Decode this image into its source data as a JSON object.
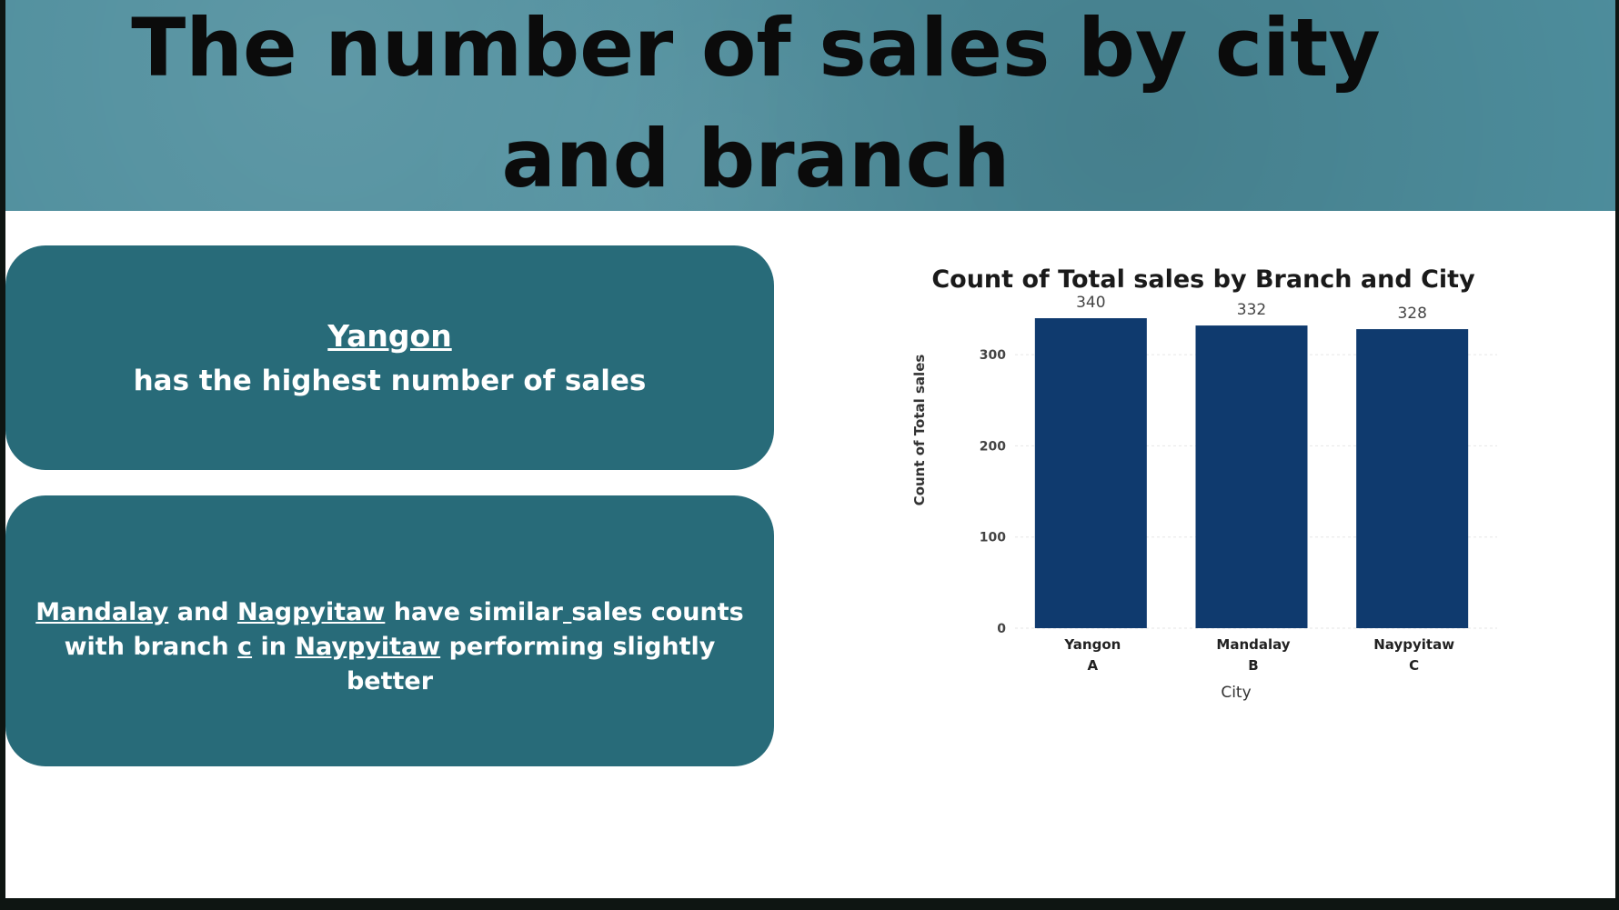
{
  "slide": {
    "title": "The number of sales by city and branch"
  },
  "card1": {
    "city": "Yangon",
    "text": "has the highest number of sales"
  },
  "card2": {
    "city1": "Mandalay",
    "and": " and ",
    "city2": "Nagpyitaw",
    "mid": " have similar",
    "gap": " ",
    "rest": "sales counts with branch ",
    "branch": "c",
    "in": " in ",
    "city3": "Naypyitaw",
    "tail": " performing slightly better"
  },
  "chart_data": {
    "type": "bar",
    "title": "Count of Total sales by Branch and City",
    "xlabel": "City",
    "ylabel": "Count of Total sales",
    "categories": [
      "Yangon",
      "Mandalay",
      "Naypyitaw"
    ],
    "subcategories": [
      "A",
      "B",
      "C"
    ],
    "values": [
      340,
      332,
      328
    ],
    "ylim": [
      0,
      350
    ],
    "yticks": [
      0,
      100,
      200,
      300
    ],
    "bar_color": "#0f3a6e",
    "grid": true,
    "data_labels": true
  }
}
